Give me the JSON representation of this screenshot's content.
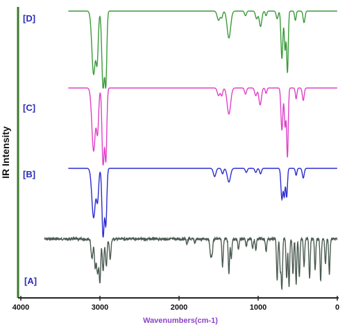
{
  "chart_data": {
    "type": "line",
    "title": "",
    "xlabel": "Wavenumbers(cm-1)",
    "ylabel": "IR Intensity",
    "xlim": [
      4000,
      0
    ],
    "x_reversed": true,
    "x_ticks": [
      "4000",
      "3000",
      "2000",
      "1000",
      "0"
    ],
    "x_tick_values": [
      4000,
      3000,
      2000,
      1000,
      0
    ],
    "grid": false,
    "legend": "none",
    "intensity_units": "relative transmittance (0 = baseline, 1 = deepest band in panel)",
    "series": [
      {
        "name": "[D]",
        "color": "#3a9a3a",
        "x_start": 3400,
        "baseline_end_x": 0,
        "noise": 0,
        "peaks": [
          [
            3080,
            0.82,
            22
          ],
          [
            3035,
            0.6,
            14
          ],
          [
            2960,
            1.0,
            16
          ],
          [
            2925,
            0.9,
            12
          ],
          [
            1500,
            0.12,
            18
          ],
          [
            1460,
            0.08,
            12
          ],
          [
            1370,
            0.35,
            22
          ],
          [
            1160,
            0.06,
            12
          ],
          [
            1020,
            0.1,
            14
          ],
          [
            970,
            0.2,
            16
          ],
          [
            900,
            0.06,
            10
          ],
          [
            760,
            0.1,
            12
          ],
          [
            700,
            0.62,
            12
          ],
          [
            660,
            0.5,
            10
          ],
          [
            630,
            0.8,
            10
          ],
          [
            530,
            0.12,
            10
          ],
          [
            420,
            0.15,
            12
          ]
        ]
      },
      {
        "name": "[C]",
        "color": "#e040c8",
        "x_start": 3400,
        "baseline_end_x": 0,
        "noise": 0,
        "peaks": [
          [
            3080,
            0.82,
            22
          ],
          [
            3030,
            0.55,
            14
          ],
          [
            2960,
            1.0,
            14
          ],
          [
            2925,
            0.92,
            12
          ],
          [
            1500,
            0.1,
            16
          ],
          [
            1460,
            0.1,
            12
          ],
          [
            1370,
            0.34,
            22
          ],
          [
            1160,
            0.08,
            12
          ],
          [
            1030,
            0.1,
            14
          ],
          [
            975,
            0.22,
            16
          ],
          [
            900,
            0.07,
            10
          ],
          [
            700,
            0.55,
            12
          ],
          [
            660,
            0.5,
            10
          ],
          [
            630,
            0.9,
            10
          ],
          [
            520,
            0.14,
            10
          ],
          [
            430,
            0.16,
            12
          ]
        ]
      },
      {
        "name": "[B]",
        "color": "#2a2ad0",
        "x_start": 3400,
        "baseline_end_x": 0,
        "noise": 0,
        "peaks": [
          [
            3080,
            0.72,
            22
          ],
          [
            3030,
            0.45,
            14
          ],
          [
            2960,
            1.0,
            14
          ],
          [
            2925,
            0.8,
            12
          ],
          [
            1550,
            0.12,
            16
          ],
          [
            1450,
            0.08,
            12
          ],
          [
            1370,
            0.2,
            20
          ],
          [
            1150,
            0.06,
            12
          ],
          [
            1030,
            0.06,
            12
          ],
          [
            970,
            0.08,
            12
          ],
          [
            700,
            0.45,
            12
          ],
          [
            670,
            0.4,
            10
          ],
          [
            640,
            0.42,
            10
          ],
          [
            520,
            0.1,
            10
          ],
          [
            430,
            0.14,
            12
          ]
        ]
      },
      {
        "name": "[A]",
        "color": "#4a5a50",
        "x_start": 3700,
        "baseline_end_x": 0,
        "noise": 0.025,
        "peaks": [
          [
            3100,
            0.4,
            12
          ],
          [
            3060,
            0.55,
            10
          ],
          [
            3030,
            0.7,
            12
          ],
          [
            3000,
            0.85,
            10
          ],
          [
            2960,
            0.65,
            10
          ],
          [
            2920,
            0.55,
            10
          ],
          [
            2870,
            0.4,
            10
          ],
          [
            1900,
            0.1,
            8
          ],
          [
            1800,
            0.08,
            8
          ],
          [
            1600,
            0.35,
            10
          ],
          [
            1580,
            0.25,
            8
          ],
          [
            1450,
            0.55,
            8
          ],
          [
            1370,
            0.7,
            8
          ],
          [
            1340,
            0.4,
            8
          ],
          [
            1250,
            0.2,
            8
          ],
          [
            1150,
            0.15,
            8
          ],
          [
            1070,
            0.18,
            8
          ],
          [
            1030,
            0.22,
            8
          ],
          [
            900,
            0.25,
            8
          ],
          [
            760,
            0.85,
            8
          ],
          [
            720,
            0.6,
            8
          ],
          [
            700,
            1.0,
            8
          ],
          [
            640,
            0.8,
            8
          ],
          [
            610,
            0.95,
            8
          ],
          [
            560,
            0.7,
            8
          ],
          [
            520,
            0.9,
            8
          ],
          [
            480,
            0.75,
            8
          ],
          [
            420,
            0.55,
            8
          ],
          [
            350,
            0.8,
            8
          ],
          [
            280,
            0.6,
            8
          ],
          [
            210,
            0.85,
            8
          ],
          [
            150,
            0.5,
            8
          ],
          [
            100,
            0.7,
            8
          ]
        ]
      }
    ]
  },
  "colors": {
    "axis_left": "#3a7a2a",
    "axis_bottom": "#222222",
    "xlabel": "#8a44c8",
    "panel_label": "#2a2ab8",
    "tick_label": "#111111"
  }
}
